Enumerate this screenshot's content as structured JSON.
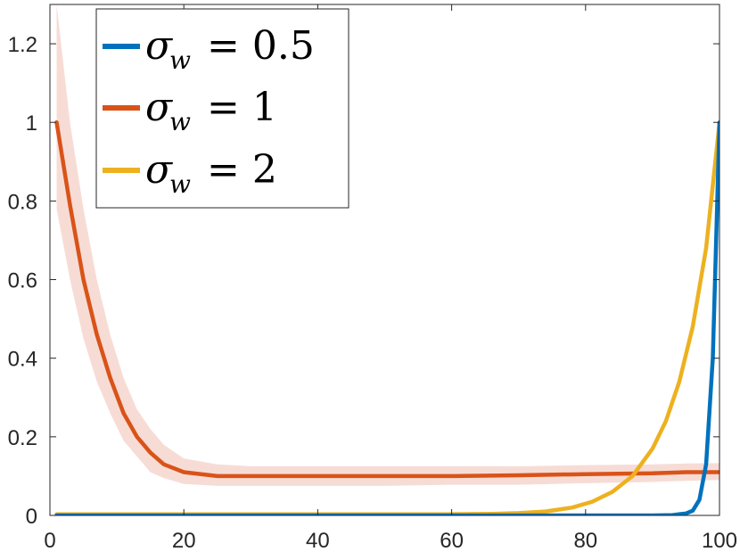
{
  "chart_data": {
    "type": "line",
    "title": "",
    "xlabel": "",
    "ylabel": "",
    "xlim": [
      0,
      100
    ],
    "ylim": [
      0,
      1.3
    ],
    "xticks": [
      "0",
      "20",
      "40",
      "60",
      "80",
      "100"
    ],
    "yticks": [
      "0",
      "0.2",
      "0.4",
      "0.6",
      "0.8",
      "1",
      "1.2"
    ],
    "grid": false,
    "legend_position": "top-left",
    "series": [
      {
        "name": "σ_w = 0.5",
        "color": "#0072BD",
        "x": [
          1,
          90,
          93,
          95,
          96,
          97,
          98,
          99,
          100
        ],
        "values": [
          0.0,
          0.0,
          0.001,
          0.005,
          0.012,
          0.04,
          0.13,
          0.4,
          1.0
        ]
      },
      {
        "name": "σ_w = 1",
        "color": "#D95319",
        "band_color": "#F7DCD6",
        "x": [
          1,
          3,
          5,
          7,
          9,
          11,
          13,
          15,
          17,
          20,
          25,
          30,
          40,
          50,
          60,
          70,
          80,
          90,
          95,
          100
        ],
        "values": [
          1.0,
          0.79,
          0.6,
          0.46,
          0.35,
          0.26,
          0.2,
          0.16,
          0.13,
          0.11,
          0.1,
          0.1,
          0.1,
          0.1,
          0.1,
          0.102,
          0.105,
          0.107,
          0.11,
          0.11
        ],
        "band_upper": [
          1.3,
          1.0,
          0.78,
          0.6,
          0.46,
          0.35,
          0.27,
          0.22,
          0.18,
          0.145,
          0.13,
          0.125,
          0.125,
          0.125,
          0.125,
          0.125,
          0.128,
          0.13,
          0.132,
          0.133
        ],
        "band_lower": [
          0.78,
          0.6,
          0.45,
          0.34,
          0.26,
          0.19,
          0.15,
          0.11,
          0.095,
          0.08,
          0.075,
          0.075,
          0.075,
          0.075,
          0.078,
          0.078,
          0.082,
          0.085,
          0.088,
          0.09
        ]
      },
      {
        "name": "σ_w = 2",
        "color": "#EDB120",
        "x": [
          1,
          50,
          60,
          66,
          70,
          74,
          78,
          81,
          84,
          87,
          90,
          92,
          94,
          96,
          98,
          100
        ],
        "values": [
          0.003,
          0.003,
          0.003,
          0.004,
          0.006,
          0.01,
          0.02,
          0.035,
          0.06,
          0.1,
          0.17,
          0.24,
          0.34,
          0.48,
          0.68,
          1.0
        ]
      }
    ]
  },
  "legend": {
    "items": [
      {
        "symbol": "σ",
        "subscript": "w",
        "value": "= 0.5",
        "color": "#0072BD"
      },
      {
        "symbol": "σ",
        "subscript": "w",
        "value": "= 1",
        "color": "#D95319"
      },
      {
        "symbol": "σ",
        "subscript": "w",
        "value": "= 2",
        "color": "#EDB120"
      }
    ]
  }
}
